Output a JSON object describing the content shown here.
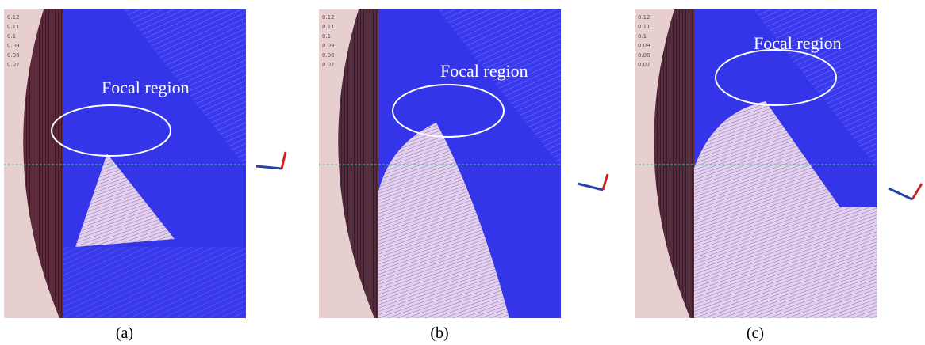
{
  "panels": [
    {
      "scale_labels": [
        "0.12",
        "0.11",
        "0.1",
        "0.09",
        "0.08",
        "0.07"
      ],
      "annotation": "Focal region",
      "caption": "(a)"
    },
    {
      "scale_labels": [
        "0.12",
        "0.11",
        "0.1",
        "0.09",
        "0.08",
        "0.07"
      ],
      "annotation": "Focal region",
      "caption": "(b)"
    },
    {
      "scale_labels": [
        "0.12",
        "0.11",
        "0.1",
        "0.09",
        "0.08",
        "0.07"
      ],
      "annotation": "Focal region",
      "caption": "(c)"
    }
  ]
}
